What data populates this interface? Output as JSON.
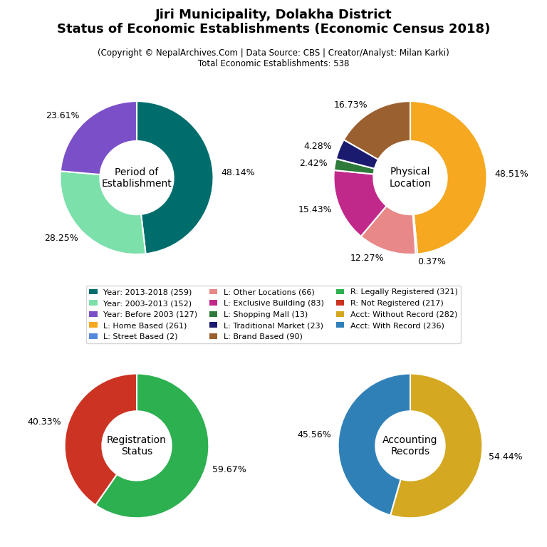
{
  "title": "Jiri Municipality, Dolakha District\nStatus of Economic Establishments (Economic Census 2018)",
  "subtitle": "(Copyright © NepalArchives.Com | Data Source: CBS | Creator/Analyst: Milan Karki)\nTotal Economic Establishments: 538",
  "legend": "center",
  "chart_data": [
    {
      "type": "pie",
      "title": "Period of\nEstablishment",
      "categories": [
        "Year: 2013-2018 (259)",
        "Year: 2003-2013 (152)",
        "Year: Before 2003 (127)"
      ],
      "values": [
        48.14,
        28.25,
        23.61
      ],
      "value_labels": [
        "48.14%",
        "28.25%",
        "23.61%"
      ],
      "colors": [
        "#006d6d",
        "#7be0aa",
        "#7b4fc8"
      ],
      "data_labels": true
    },
    {
      "type": "pie",
      "title": "Physical\nLocation",
      "categories": [
        "L: Home Based (261)",
        "L: Street Based (2)",
        "L: Other Locations (66)",
        "L: Exclusive Building (83)",
        "L: Shopping Mall (13)",
        "L: Traditional Market (23)",
        "L: Brand Based (90)"
      ],
      "values": [
        48.51,
        0.37,
        12.27,
        15.43,
        2.42,
        4.28,
        16.73
      ],
      "value_labels": [
        "48.51%",
        "0.37%",
        "12.27%",
        "15.43%",
        "2.42%",
        "4.28%",
        "16.73%"
      ],
      "colors": [
        "#f5a820",
        "#5588dd",
        "#e88888",
        "#c0298a",
        "#2e7a3a",
        "#1a1a6e",
        "#9b6030"
      ],
      "data_labels": true
    },
    {
      "type": "pie",
      "title": "Registration\nStatus",
      "categories": [
        "R: Legally Registered (321)",
        "R: Not Registered (217)"
      ],
      "values": [
        59.67,
        40.33
      ],
      "value_labels": [
        "59.67%",
        "40.33%"
      ],
      "colors": [
        "#2db050",
        "#cc3322"
      ],
      "data_labels": true
    },
    {
      "type": "pie",
      "title": "Accounting\nRecords",
      "categories": [
        "Acct: Without Record (282)",
        "Acct: With Record (236)"
      ],
      "values": [
        54.44,
        45.56
      ],
      "value_labels": [
        "54.44%",
        "45.56%"
      ],
      "colors": [
        "#d4a820",
        "#3080b8"
      ],
      "data_labels": true
    }
  ]
}
